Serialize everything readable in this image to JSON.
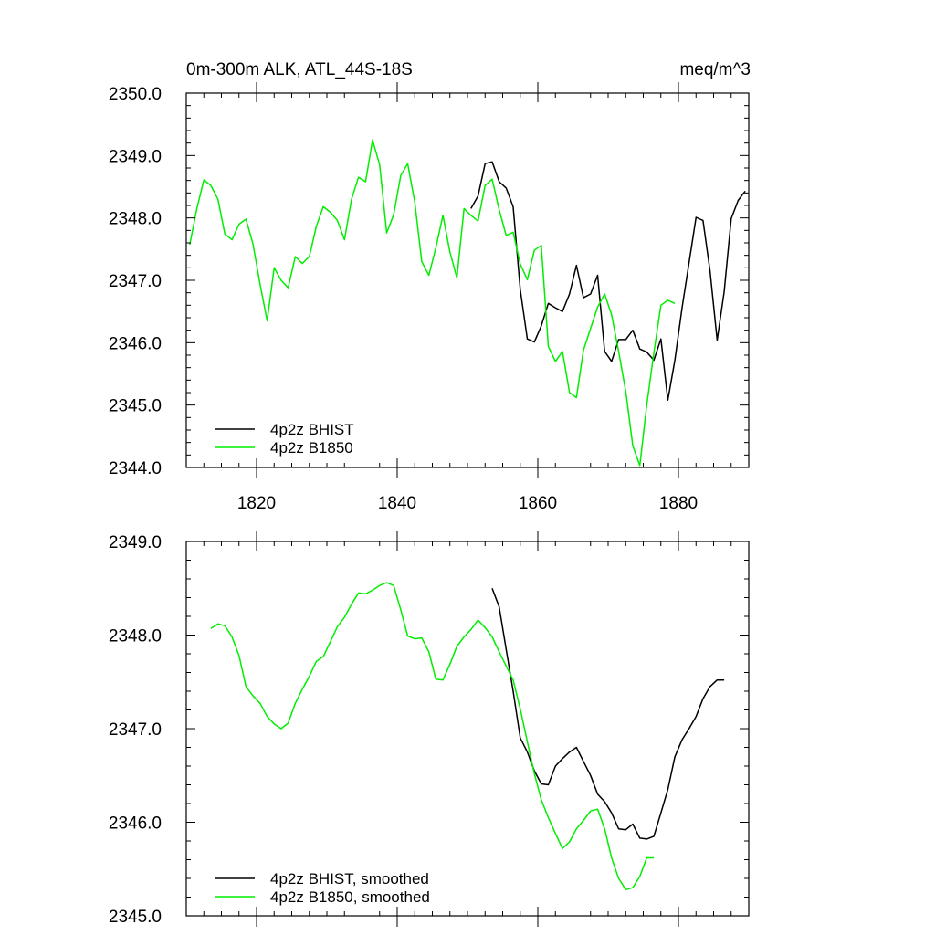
{
  "chart_data": [
    {
      "type": "line",
      "title": "0m-300m ALK, ATL_44S-18S",
      "units_label": "meq/m^3",
      "xlabel": "",
      "ylabel": "",
      "xlim": [
        1810,
        1890
      ],
      "ylim": [
        2344.0,
        2350.0
      ],
      "xticks": [
        1820,
        1840,
        1860,
        1880
      ],
      "xtick_labels": [
        "1820",
        "1840",
        "1860",
        "1880"
      ],
      "yticks": [
        2344,
        2345,
        2346,
        2347,
        2348,
        2349,
        2350
      ],
      "ytick_labels": [
        "2344.0",
        "2345.0",
        "2346.0",
        "2347.0",
        "2348.0",
        "2349.0",
        "2350.0"
      ],
      "legend_position": "bottom-left",
      "series": [
        {
          "name": "4p2z BHIST",
          "color": "#000000",
          "x": [
            1850.5,
            1851.5,
            1852.5,
            1853.5,
            1854.5,
            1855.5,
            1856.5,
            1857.5,
            1858.5,
            1859.5,
            1860.5,
            1861.5,
            1862.5,
            1863.5,
            1864.5,
            1865.5,
            1866.5,
            1867.5,
            1868.5,
            1869.5,
            1870.5,
            1871.5,
            1872.5,
            1873.5,
            1874.5,
            1875.5,
            1876.5,
            1877.5,
            1878.5,
            1879.5,
            1880.5,
            1881.5,
            1882.5,
            1883.5,
            1884.5,
            1885.5,
            1886.5,
            1887.5,
            1888.5,
            1889.5
          ],
          "values": [
            2348.15,
            2348.35,
            2348.87,
            2348.9,
            2348.58,
            2348.48,
            2348.18,
            2346.85,
            2346.06,
            2346.01,
            2346.27,
            2346.63,
            2346.56,
            2346.5,
            2346.78,
            2347.24,
            2346.72,
            2346.78,
            2347.08,
            2345.86,
            2345.7,
            2346.05,
            2346.05,
            2346.2,
            2345.9,
            2345.85,
            2345.72,
            2346.06,
            2345.08,
            2345.72,
            2346.55,
            2347.28,
            2348.01,
            2347.96,
            2347.15,
            2346.04,
            2346.82,
            2347.99,
            2348.28,
            2348.43
          ]
        },
        {
          "name": "4p2z B1850",
          "color": "#00ee00",
          "x": [
            1810.5,
            1811.5,
            1812.5,
            1813.5,
            1814.5,
            1815.5,
            1816.5,
            1817.5,
            1818.5,
            1819.5,
            1820.5,
            1821.5,
            1822.5,
            1823.5,
            1824.5,
            1825.5,
            1826.5,
            1827.5,
            1828.5,
            1829.5,
            1830.5,
            1831.5,
            1832.5,
            1833.5,
            1834.5,
            1835.5,
            1836.5,
            1837.5,
            1838.5,
            1839.5,
            1840.5,
            1841.5,
            1842.5,
            1843.5,
            1844.5,
            1845.5,
            1846.5,
            1847.5,
            1848.5,
            1849.5,
            1850.5,
            1851.5,
            1852.5,
            1853.5,
            1854.5,
            1855.5,
            1856.5,
            1857.5,
            1858.5,
            1859.5,
            1860.5,
            1861.5,
            1862.5,
            1863.5,
            1864.5,
            1865.5,
            1866.5,
            1867.5,
            1868.5,
            1869.5,
            1870.5,
            1871.5,
            1872.5,
            1873.5,
            1874.5,
            1875.5,
            1876.5,
            1877.5,
            1878.5,
            1879.5
          ],
          "values": [
            2347.57,
            2348.15,
            2348.61,
            2348.52,
            2348.3,
            2347.74,
            2347.65,
            2347.9,
            2347.98,
            2347.58,
            2346.93,
            2346.35,
            2347.2,
            2347.0,
            2346.88,
            2347.38,
            2347.27,
            2347.38,
            2347.87,
            2348.18,
            2348.09,
            2347.96,
            2347.65,
            2348.3,
            2348.65,
            2348.58,
            2349.25,
            2348.85,
            2347.76,
            2348.05,
            2348.68,
            2348.87,
            2348.25,
            2347.3,
            2347.08,
            2347.52,
            2348.04,
            2347.45,
            2347.04,
            2348.15,
            2348.04,
            2347.95,
            2348.52,
            2348.62,
            2348.13,
            2347.72,
            2347.77,
            2347.26,
            2347.01,
            2347.48,
            2347.56,
            2345.94,
            2345.7,
            2345.86,
            2345.2,
            2345.12,
            2345.88,
            2346.23,
            2346.57,
            2346.78,
            2346.45,
            2345.86,
            2345.22,
            2344.35,
            2344.03,
            2345.0,
            2345.84,
            2346.6,
            2346.68,
            2346.63
          ]
        }
      ]
    },
    {
      "type": "line",
      "title": "",
      "xlabel": "",
      "ylabel": "",
      "xlim": [
        1810,
        1890
      ],
      "ylim": [
        2345.0,
        2349.0
      ],
      "xticks": [
        1820,
        1840,
        1860,
        1880
      ],
      "yticks": [
        2345,
        2346,
        2347,
        2348,
        2349
      ],
      "ytick_labels": [
        "2345.0",
        "2346.0",
        "2347.0",
        "2348.0",
        "2349.0"
      ],
      "legend_position": "bottom-left",
      "series": [
        {
          "name": "4p2z BHIST, smoothed",
          "color": "#000000",
          "x": [
            1853.5,
            1854.5,
            1855.5,
            1856.5,
            1857.5,
            1858.5,
            1859.5,
            1860.5,
            1861.5,
            1862.5,
            1863.5,
            1864.5,
            1865.5,
            1866.5,
            1867.5,
            1868.5,
            1869.5,
            1870.5,
            1871.5,
            1872.5,
            1873.5,
            1874.5,
            1875.5,
            1876.5,
            1877.5,
            1878.5,
            1879.5,
            1880.5,
            1881.5,
            1882.5,
            1883.5,
            1884.5,
            1885.5,
            1886.5
          ],
          "values": [
            2348.5,
            2348.3,
            2347.85,
            2347.4,
            2346.9,
            2346.75,
            2346.55,
            2346.41,
            2346.4,
            2346.6,
            2346.68,
            2346.75,
            2346.8,
            2346.65,
            2346.5,
            2346.3,
            2346.22,
            2346.1,
            2345.93,
            2345.92,
            2345.98,
            2345.83,
            2345.82,
            2345.85,
            2346.1,
            2346.35,
            2346.7,
            2346.88,
            2347.0,
            2347.13,
            2347.32,
            2347.45,
            2347.52,
            2347.52
          ]
        },
        {
          "name": "4p2z B1850, smoothed",
          "color": "#00ee00",
          "x": [
            1813.5,
            1814.5,
            1815.5,
            1816.5,
            1817.5,
            1818.5,
            1819.5,
            1820.5,
            1821.5,
            1822.5,
            1823.5,
            1824.5,
            1825.5,
            1826.5,
            1827.5,
            1828.5,
            1829.5,
            1830.5,
            1831.5,
            1832.5,
            1833.5,
            1834.5,
            1835.5,
            1836.5,
            1837.5,
            1838.5,
            1839.5,
            1840.5,
            1841.5,
            1842.5,
            1843.5,
            1844.5,
            1845.5,
            1846.5,
            1847.5,
            1848.5,
            1849.5,
            1850.5,
            1851.5,
            1852.5,
            1853.5,
            1854.5,
            1855.5,
            1856.5,
            1857.5,
            1858.5,
            1859.5,
            1860.5,
            1861.5,
            1862.5,
            1863.5,
            1864.5,
            1865.5,
            1866.5,
            1867.5,
            1868.5,
            1869.5,
            1870.5,
            1871.5,
            1872.5,
            1873.5,
            1874.5,
            1875.5,
            1876.5
          ],
          "values": [
            2348.07,
            2348.12,
            2348.1,
            2347.98,
            2347.78,
            2347.45,
            2347.35,
            2347.27,
            2347.13,
            2347.05,
            2347.0,
            2347.06,
            2347.27,
            2347.42,
            2347.56,
            2347.72,
            2347.77,
            2347.93,
            2348.09,
            2348.19,
            2348.33,
            2348.45,
            2348.44,
            2348.48,
            2348.53,
            2348.56,
            2348.53,
            2348.27,
            2347.99,
            2347.96,
            2347.97,
            2347.82,
            2347.53,
            2347.52,
            2347.69,
            2347.88,
            2347.98,
            2348.06,
            2348.16,
            2348.08,
            2347.98,
            2347.82,
            2347.67,
            2347.52,
            2347.21,
            2346.86,
            2346.52,
            2346.24,
            2346.05,
            2345.88,
            2345.72,
            2345.79,
            2345.93,
            2346.02,
            2346.12,
            2346.14,
            2345.93,
            2345.62,
            2345.4,
            2345.28,
            2345.3,
            2345.42,
            2345.62,
            2345.62
          ]
        }
      ]
    }
  ]
}
